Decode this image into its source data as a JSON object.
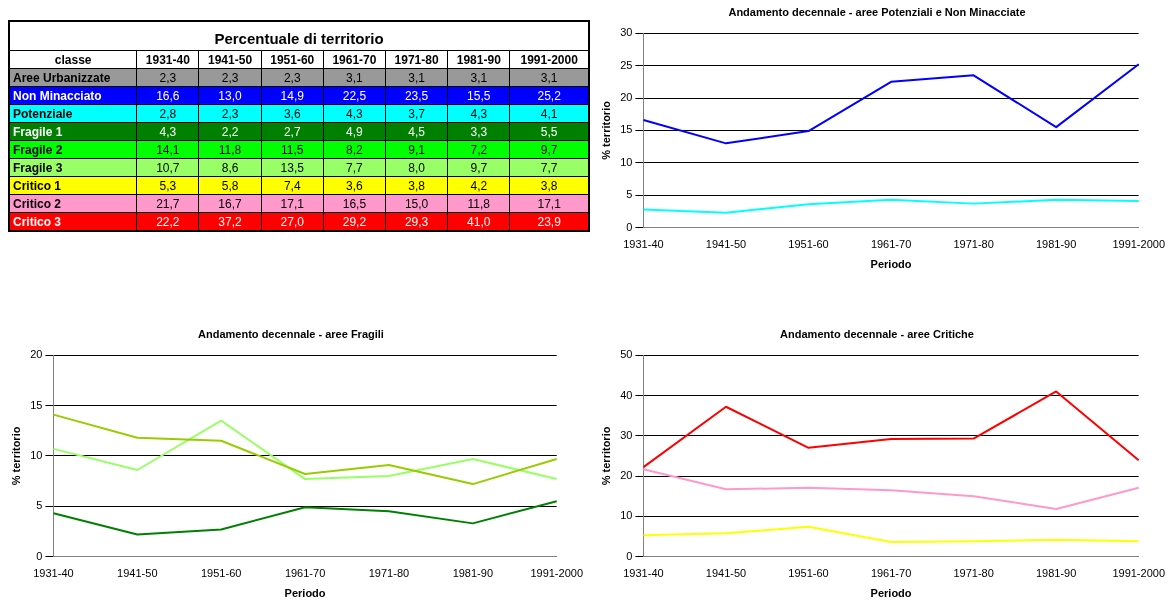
{
  "chart_data": [
    {
      "type": "other",
      "title": "Percentuale di territorio",
      "ylabel": "classe",
      "categories": [
        "1931-40",
        "1941-50",
        "1951-60",
        "1961-70",
        "1971-80",
        "1981-90",
        "1991-2000"
      ],
      "y_categories": [
        "Aree Urbanizzate",
        "Non Minacciato",
        "Potenziale",
        "Fragile 1",
        "Fragile 2",
        "Fragile 3",
        "Critico 1",
        "Critico 2",
        "Critico 3"
      ],
      "colors": [
        "#999999",
        "#0000ff",
        "#00ffff",
        "#008000",
        "#00ff00",
        "#99ff66",
        "#ffff00",
        "#ff99cc",
        "#ff0000"
      ],
      "cell_labels": [
        [
          "2,3",
          "2,3",
          "2,3",
          "3,1",
          "3,1",
          "3,1",
          "3,1"
        ],
        [
          "16,6",
          "13,0",
          "14,9",
          "22,5",
          "23,5",
          "15,5",
          "25,2"
        ],
        [
          "2,8",
          "2,3",
          "3,6",
          "4,3",
          "3,7",
          "4,3",
          "4,1"
        ],
        [
          "4,3",
          "2,2",
          "2,7",
          "4,9",
          "4,5",
          "3,3",
          "5,5"
        ],
        [
          "14,1",
          "11,8",
          "11,5",
          "8,2",
          "9,1",
          "7,2",
          "9,7"
        ],
        [
          "10,7",
          "8,6",
          "13,5",
          "7,7",
          "8,0",
          "9,7",
          "7,7"
        ],
        [
          "5,3",
          "5,8",
          "7,4",
          "3,6",
          "3,8",
          "4,2",
          "3,8"
        ],
        [
          "21,7",
          "16,7",
          "17,1",
          "16,5",
          "15,0",
          "11,8",
          "17,1"
        ],
        [
          "22,2",
          "37,2",
          "27,0",
          "29,2",
          "29,3",
          "41,0",
          "23,9"
        ]
      ]
    },
    {
      "type": "line",
      "title": "Andamento decennale - aree Potenziali e Non Minacciate",
      "xlabel": "Periodo",
      "ylabel": "% territorio",
      "categories": [
        "1931-40",
        "1941-50",
        "1951-60",
        "1961-70",
        "1971-80",
        "1981-90",
        "1991-2000"
      ],
      "series": [
        {
          "color": "#0000ff",
          "values": [
            16.6,
            13.0,
            14.9,
            22.5,
            23.5,
            15.5,
            25.2
          ]
        },
        {
          "color": "#00ffff",
          "values": [
            2.8,
            2.3,
            3.6,
            4.3,
            3.7,
            4.3,
            4.1
          ]
        }
      ],
      "ylim": [
        0,
        30
      ],
      "yticks": [
        0,
        5,
        10,
        15,
        20,
        25,
        30
      ],
      "grid": "y",
      "legend": false,
      "marker": "none"
    },
    {
      "type": "line",
      "title": "Andamento decennale - aree Fragili",
      "xlabel": "Periodo",
      "ylabel": "% territorio",
      "categories": [
        "1931-40",
        "1941-50",
        "1951-60",
        "1961-70",
        "1971-80",
        "1981-90",
        "1991-2000"
      ],
      "series": [
        {
          "color": "#008000",
          "values": [
            4.3,
            2.2,
            2.7,
            4.9,
            4.5,
            3.3,
            5.5
          ]
        },
        {
          "color": "#99cc00",
          "values": [
            14.1,
            11.8,
            11.5,
            8.2,
            9.1,
            7.2,
            9.7
          ]
        },
        {
          "color": "#99ff66",
          "values": [
            10.7,
            8.6,
            13.5,
            7.7,
            8.0,
            9.7,
            7.7
          ]
        }
      ],
      "ylim": [
        0,
        20
      ],
      "yticks": [
        0,
        5,
        10,
        15,
        20
      ],
      "grid": "y",
      "legend": false,
      "marker": "none"
    },
    {
      "type": "line",
      "title": "Andamento decennale - aree Critiche",
      "xlabel": "Periodo",
      "ylabel": "% territorio",
      "categories": [
        "1931-40",
        "1941-50",
        "1951-60",
        "1961-70",
        "1971-80",
        "1981-90",
        "1991-2000"
      ],
      "series": [
        {
          "color": "#ffff00",
          "values": [
            5.3,
            5.8,
            7.4,
            3.6,
            3.8,
            4.2,
            3.8
          ]
        },
        {
          "color": "#ff99cc",
          "values": [
            21.7,
            16.7,
            17.1,
            16.5,
            15.0,
            11.8,
            17.1
          ]
        },
        {
          "color": "#ff0000",
          "values": [
            22.2,
            37.2,
            27.0,
            29.2,
            29.3,
            41.0,
            23.9
          ]
        }
      ],
      "ylim": [
        0,
        50
      ],
      "yticks": [
        0,
        10,
        20,
        30,
        40,
        50
      ],
      "grid": "y",
      "legend": false,
      "marker": "none"
    }
  ]
}
